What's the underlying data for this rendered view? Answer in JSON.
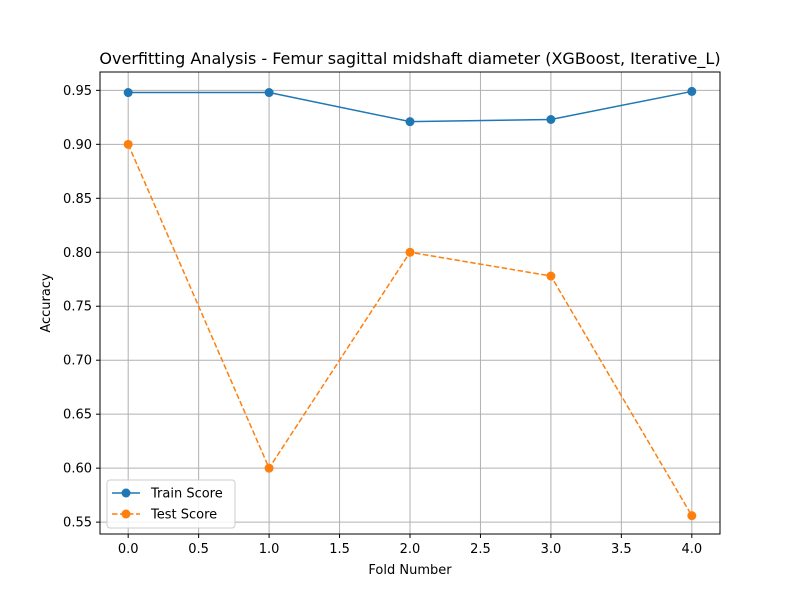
{
  "chart_data": {
    "type": "line",
    "title": "Overfitting Analysis - Femur sagittal midshaft diameter (XGBoost, Iterative_L)",
    "xlabel": "Fold Number",
    "ylabel": "Accuracy",
    "xlim": [
      -0.2,
      4.2
    ],
    "ylim": [
      0.539,
      0.967
    ],
    "xticks": [
      0.0,
      0.5,
      1.0,
      1.5,
      2.0,
      2.5,
      3.0,
      3.5,
      4.0
    ],
    "xtick_labels": [
      "0.0",
      "0.5",
      "1.0",
      "1.5",
      "2.0",
      "2.5",
      "3.0",
      "3.5",
      "4.0"
    ],
    "yticks": [
      0.55,
      0.6,
      0.65,
      0.7,
      0.75,
      0.8,
      0.85,
      0.9,
      0.95
    ],
    "ytick_labels": [
      "0.55",
      "0.60",
      "0.65",
      "0.70",
      "0.75",
      "0.80",
      "0.85",
      "0.90",
      "0.95"
    ],
    "grid": true,
    "legend_position": "lower-left",
    "x": [
      0,
      1,
      2,
      3,
      4
    ],
    "series": [
      {
        "name": "Train Score",
        "values": [
          0.948,
          0.948,
          0.921,
          0.923,
          0.949
        ],
        "color": "#1f77b4",
        "dashed": false
      },
      {
        "name": "Test Score",
        "values": [
          0.9,
          0.6,
          0.8,
          0.778,
          0.556
        ],
        "color": "#ff7f0e",
        "dashed": true
      }
    ]
  }
}
